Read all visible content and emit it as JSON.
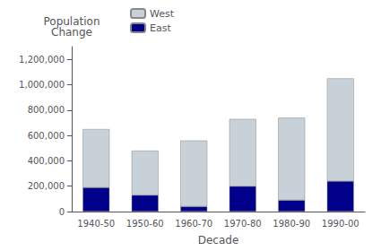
{
  "chart_data": {
    "type": "bar",
    "stacked": true,
    "categories": [
      "1940-50",
      "1950-60",
      "1960-70",
      "1970-80",
      "1980-90",
      "1990-00"
    ],
    "series": [
      {
        "name": "East",
        "color": "#00008B",
        "values": [
          190000,
          130000,
          40000,
          200000,
          90000,
          240000
        ]
      },
      {
        "name": "West",
        "color": "#C8D0D8",
        "values": [
          460000,
          350000,
          520000,
          530000,
          650000,
          810000
        ]
      }
    ],
    "xlabel": "Decade",
    "ylabel": "Population\nChange",
    "ylim": [
      0,
      1300000
    ],
    "yticks": [
      0,
      {
        "value": 200000,
        "label": "200,000"
      },
      {
        "value": 400000,
        "label": "400,000"
      },
      {
        "value": 600000,
        "label": "600,000"
      },
      {
        "value": 800000,
        "label": "800,000"
      },
      {
        "value": 1000000,
        "label": "1,000,000"
      },
      {
        "value": 1200000,
        "label": "1,200,000"
      }
    ],
    "grid": false,
    "legend": "upper left"
  }
}
